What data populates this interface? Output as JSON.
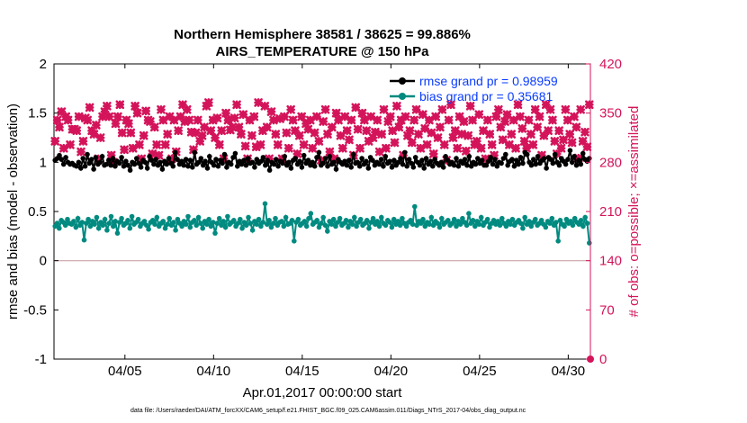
{
  "chart_data": {
    "type": "line",
    "title_line1": "Northern Hemisphere 38581 / 38625 = 99.886%",
    "title_line2": "AIRS_TEMPERATURE @ 150 hPa",
    "xlabel": "Apr.01,2017 00:00:00 start",
    "ylabel": "rmse and bias (model - observation)",
    "ylabel_right": "# of obs: o=possible; ×=assimilated",
    "footer": "data file: /Users/raeder/DAI/ATM_forcXX/CAM6_setup/f.e21.FHIST_BGC.f09_025.CAM6assim.011/Diags_NTrS_2017-04/obs_diag_output.nc",
    "xlim": [
      1.0,
      31.25
    ],
    "ylim": [
      -1,
      2
    ],
    "ylim_right": [
      0,
      420
    ],
    "x_ticks": [
      5,
      10,
      15,
      20,
      25,
      30
    ],
    "x_tick_labels": [
      "04/05",
      "04/10",
      "04/15",
      "04/20",
      "04/25",
      "04/30"
    ],
    "y_ticks": [
      -1,
      -0.5,
      0,
      0.5,
      1,
      1.5,
      2
    ],
    "y_tick_labels": [
      "-1",
      "-0.5",
      "0",
      "0.5",
      "1",
      "1.5",
      "2"
    ],
    "y_right_ticks": [
      0,
      70,
      140,
      210,
      280,
      350,
      420
    ],
    "y_right_tick_labels": [
      "0",
      "70",
      "140",
      "210",
      "280",
      "350",
      "420"
    ],
    "zero_line": 0,
    "series": [
      {
        "name": "rmse grand pr = 0.98959",
        "color": "#000000",
        "marker": "circle",
        "values": [
          1.02,
          1.04,
          1.07,
          1.03,
          0.98,
          1.05,
          1.0,
          0.98,
          0.99,
          0.97,
          0.96,
          1.0,
          0.94,
          1.04,
          0.96,
          1.08,
          0.99,
          1.03,
          0.93,
          1.05,
          0.98,
          1.0,
          1.06,
          0.97,
          0.98,
          1.02,
          0.97,
          1.04,
          0.96,
          1.01,
          0.99,
          1.05,
          0.96,
          1.01,
          0.97,
          0.92,
          1.0,
          0.98,
          1.04,
          0.99,
          0.95,
          1.02,
          1.0,
          0.94,
          1.06,
          1.02,
          0.98,
          1.03,
          0.97,
          1.0,
          0.93,
          1.01,
          0.98,
          1.04,
          0.99,
          0.96,
          1.1,
          1.03,
          0.98,
          1.01,
          0.97,
          1.03,
          0.96,
          1.02,
          0.95,
          1.1,
          0.98,
          1.0,
          1.04,
          0.97,
          1.01,
          0.94,
          1.06,
          1.0,
          0.97,
          1.03,
          0.96,
          1.02,
          0.99,
          1.08,
          0.95,
          1.0,
          0.98,
          1.05,
          1.09,
          0.96,
          1.01,
          0.98,
          1.02,
          0.97,
          1.04,
          0.99,
          1.0,
          0.95,
          1.03,
          0.99,
          1.01,
          1.05,
          0.97,
          1.02,
          0.92,
          1.0,
          0.98,
          1.03,
          0.96,
          1.01,
          0.99,
          1.06,
          0.97,
          1.0,
          0.94,
          1.02,
          1.04,
          0.98,
          1.01,
          0.95,
          1.07,
          0.99,
          1.02,
          0.97,
          1.0,
          0.96,
          1.05,
          1.1,
          0.97,
          0.99,
          1.04,
          0.96,
          1.06,
          0.98,
          1.0,
          0.93,
          1.03,
          1.0,
          0.98,
          1.01,
          0.97,
          1.02,
          0.95,
          1.08,
          0.99,
          1.0,
          0.96,
          1.04,
          0.98,
          1.01,
          0.94,
          1.05,
          1.02,
          0.97,
          1.0,
          0.98,
          1.03,
          0.96,
          1.06,
          0.99,
          1.01,
          0.95,
          1.02,
          0.97,
          1.0,
          1.04,
          0.98,
          1.1,
          0.96,
          1.03,
          0.99,
          0.95,
          1.05,
          1.0,
          0.97,
          1.02,
          0.94,
          1.04,
          0.98,
          1.01,
          0.96,
          1.03,
          0.99,
          0.97,
          1.0,
          0.95,
          1.06,
          1.02,
          0.98,
          1.0,
          0.97,
          1.04,
          0.96,
          1.01,
          0.99,
          1.03,
          0.97,
          1.06,
          0.96,
          1.0,
          0.98,
          1.04,
          0.99,
          1.02,
          0.97,
          0.97,
          1.01,
          1.05,
          0.98,
          1.03,
          0.96,
          1.0,
          0.99,
          1.04,
          1.08,
          0.97,
          1.01,
          1.03,
          0.96,
          1.02,
          0.98,
          1.05,
          0.99,
          1.1,
          1.08,
          1.0,
          0.97,
          1.03,
          0.98,
          1.06,
          0.99,
          1.02,
          1.04,
          0.94,
          1.05,
          1.03,
          0.99,
          1.08,
          1.0,
          0.97,
          1.04,
          1.01,
          0.98,
          1.03,
          1.12,
          1.0,
          1.06,
          0.97,
          1.02,
          0.98,
          1.09,
          1.03,
          1.01,
          1.04
        ]
      },
      {
        "name": "bias grand pr = 0.35681",
        "color": "#008a80",
        "marker": "circle",
        "values": [
          0.35,
          0.38,
          0.33,
          0.41,
          0.39,
          0.36,
          0.42,
          0.38,
          0.37,
          0.4,
          0.34,
          0.43,
          0.36,
          0.39,
          0.21,
          0.38,
          0.42,
          0.35,
          0.4,
          0.37,
          0.44,
          0.33,
          0.39,
          0.36,
          0.42,
          0.31,
          0.38,
          0.45,
          0.35,
          0.4,
          0.28,
          0.39,
          0.43,
          0.36,
          0.38,
          0.41,
          0.33,
          0.45,
          0.37,
          0.39,
          0.42,
          0.35,
          0.38,
          0.4,
          0.36,
          0.32,
          0.39,
          0.41,
          0.37,
          0.44,
          0.35,
          0.38,
          0.4,
          0.33,
          0.37,
          0.43,
          0.36,
          0.39,
          0.31,
          0.42,
          0.38,
          0.35,
          0.4,
          0.37,
          0.45,
          0.34,
          0.39,
          0.41,
          0.36,
          0.44,
          0.38,
          0.33,
          0.4,
          0.37,
          0.42,
          0.35,
          0.39,
          0.28,
          0.38,
          0.43,
          0.36,
          0.4,
          0.34,
          0.45,
          0.37,
          0.39,
          0.41,
          0.35,
          0.38,
          0.42,
          0.33,
          0.39,
          0.36,
          0.44,
          0.38,
          0.31,
          0.4,
          0.37,
          0.42,
          0.35,
          0.39,
          0.58,
          0.37,
          0.41,
          0.34,
          0.38,
          0.43,
          0.36,
          0.39,
          0.4,
          0.35,
          0.44,
          0.37,
          0.38,
          0.41,
          0.2,
          0.39,
          0.42,
          0.36,
          0.38,
          0.4,
          0.35,
          0.43,
          0.48,
          0.37,
          0.39,
          0.41,
          0.34,
          0.38,
          0.44,
          0.36,
          0.3,
          0.4,
          0.37,
          0.42,
          0.35,
          0.39,
          0.43,
          0.36,
          0.38,
          0.41,
          0.34,
          0.4,
          0.37,
          0.44,
          0.35,
          0.39,
          0.42,
          0.36,
          0.38,
          0.41,
          0.33,
          0.39,
          0.43,
          0.37,
          0.4,
          0.35,
          0.44,
          0.38,
          0.36,
          0.41,
          0.39,
          0.34,
          0.42,
          0.37,
          0.4,
          0.36,
          0.43,
          0.38,
          0.35,
          0.39,
          0.41,
          0.37,
          0.55,
          0.36,
          0.4,
          0.38,
          0.42,
          0.35,
          0.39,
          0.37,
          0.44,
          0.36,
          0.4,
          0.38,
          0.34,
          0.43,
          0.37,
          0.39,
          0.41,
          0.36,
          0.38,
          0.42,
          0.35,
          0.4,
          0.37,
          0.43,
          0.39,
          0.36,
          0.48,
          0.38,
          0.41,
          0.35,
          0.4,
          0.37,
          0.44,
          0.36,
          0.39,
          0.42,
          0.34,
          0.38,
          0.41,
          0.37,
          0.4,
          0.36,
          0.43,
          0.38,
          0.35,
          0.4,
          0.37,
          0.42,
          0.36,
          0.39,
          0.41,
          0.38,
          0.33,
          0.44,
          0.37,
          0.4,
          0.35,
          0.39,
          0.42,
          0.36,
          0.38,
          0.41,
          0.37,
          0.34,
          0.4,
          0.38,
          0.43,
          0.36,
          0.39,
          0.2,
          0.41,
          0.37,
          0.35,
          0.42,
          0.38,
          0.4,
          0.36,
          0.43,
          0.39,
          0.37,
          0.41,
          0.35,
          0.44,
          0.38,
          0.18
        ]
      }
    ],
    "obs_series": {
      "name": "# of obs (possible / assimilated)",
      "color": "#d4145a",
      "marker": "cross",
      "values": [
        310,
        340,
        330,
        352,
        300,
        345,
        340,
        305,
        327,
        327,
        325,
        345,
        295,
        310,
        343,
        340,
        358,
        325,
        320,
        333,
        285,
        315,
        345,
        352,
        360,
        345,
        290,
        280,
        335,
        345,
        362,
        322,
        298,
        340,
        335,
        322,
        300,
        360,
        350,
        305,
        285,
        318,
        353,
        340,
        338,
        292,
        330,
        305,
        290,
        355,
        340,
        305,
        320,
        345,
        285,
        340,
        295,
        325,
        345,
        362,
        338,
        355,
        340,
        323,
        298,
        322,
        340,
        310,
        318,
        330,
        360,
        365,
        325,
        340,
        315,
        343,
        305,
        325,
        285,
        350,
        340,
        326,
        330,
        343,
        362,
        330,
        320,
        348,
        303,
        285,
        340,
        318,
        345,
        302,
        365,
        305,
        325,
        360,
        330,
        285,
        352,
        340,
        320,
        305,
        342,
        285,
        345,
        322,
        300,
        355,
        340,
        325,
        292,
        318,
        345,
        305,
        335,
        327,
        340,
        300,
        322,
        345,
        310,
        283,
        338,
        355,
        320,
        295,
        330,
        285,
        350,
        340,
        318,
        300,
        345,
        325,
        312,
        340,
        290,
        358,
        327,
        300,
        350,
        340,
        325,
        310,
        345,
        315,
        323,
        340,
        295,
        320,
        355,
        300,
        338,
        345,
        325,
        308,
        360,
        330,
        340,
        290,
        345,
        318,
        325,
        308,
        340,
        355,
        320,
        300,
        348,
        328,
        305,
        340,
        322,
        292,
        345,
        315,
        330,
        355,
        305,
        283,
        340,
        362,
        315,
        325,
        300,
        345,
        320,
        338,
        296,
        318,
        360,
        340,
        305,
        310,
        348,
        300,
        325,
        285,
        340,
        320,
        305,
        290,
        345,
        355,
        330,
        312,
        338,
        348,
        305,
        320,
        340,
        300,
        362,
        345,
        328,
        310,
        300,
        340,
        320,
        305,
        355,
        330,
        345,
        290,
        318,
        362,
        325,
        355,
        340,
        310,
        292,
        325,
        300,
        312,
        355,
        340,
        320,
        308,
        345,
        330,
        286,
        355,
        310,
        323,
        302,
        362
      ]
    },
    "zero_marker": {
      "value": 0,
      "color": "#d4145a"
    }
  }
}
